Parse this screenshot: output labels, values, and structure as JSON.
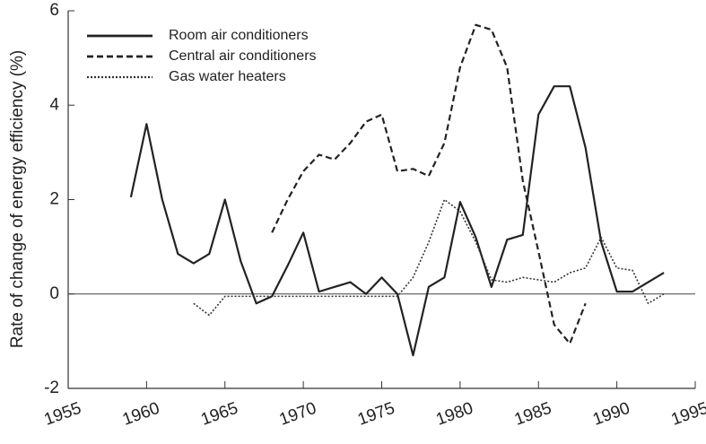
{
  "chart_data": {
    "type": "line",
    "y_label": "Rate of change of energy efficiency (%)",
    "xlim": [
      1955,
      1995
    ],
    "xticks": [
      1955,
      1960,
      1965,
      1970,
      1975,
      1980,
      1985,
      1990,
      1995
    ],
    "ylim": [
      -2,
      6
    ],
    "yticks": [
      -2,
      0,
      2,
      4,
      6
    ],
    "hline": 0,
    "series": [
      {
        "name": "Room air conditioners",
        "color": "#222222",
        "dash": "solid",
        "x": [
          1959,
          1960,
          1961,
          1962,
          1963,
          1964,
          1965,
          1966,
          1967,
          1968,
          1969,
          1970,
          1971,
          1972,
          1973,
          1974,
          1975,
          1976,
          1977,
          1978,
          1979,
          1980,
          1981,
          1982,
          1983,
          1984,
          1985,
          1986,
          1987,
          1988,
          1989,
          1990,
          1991,
          1992,
          1993
        ],
        "values": [
          2.05,
          3.6,
          2.0,
          0.85,
          0.65,
          0.85,
          2.0,
          0.7,
          -0.2,
          -0.05,
          0.6,
          1.3,
          0.05,
          0.15,
          0.25,
          0.0,
          0.35,
          0.0,
          -1.3,
          0.15,
          0.35,
          1.95,
          1.2,
          0.15,
          1.15,
          1.25,
          3.8,
          4.4,
          4.4,
          3.1,
          1.1,
          0.05,
          0.05,
          0.25,
          0.45
        ]
      },
      {
        "name": "Central air conditioners",
        "color": "#222222",
        "dash": "dashed",
        "x": [
          1968,
          1969,
          1970,
          1971,
          1972,
          1973,
          1974,
          1975,
          1976,
          1977,
          1978,
          1979,
          1980,
          1981,
          1982,
          1983,
          1984,
          1985,
          1986,
          1987,
          1988
        ],
        "values": [
          1.3,
          2.0,
          2.6,
          2.95,
          2.85,
          3.2,
          3.65,
          3.8,
          2.6,
          2.65,
          2.5,
          3.2,
          4.8,
          5.7,
          5.6,
          4.8,
          2.4,
          0.9,
          -0.65,
          -1.05,
          -0.2
        ]
      },
      {
        "name": "Gas water heaters",
        "color": "#333333",
        "dash": "dotted",
        "x": [
          1963,
          1964,
          1965,
          1966,
          1967,
          1968,
          1969,
          1970,
          1971,
          1972,
          1973,
          1974,
          1975,
          1976,
          1977,
          1978,
          1979,
          1980,
          1981,
          1982,
          1983,
          1984,
          1985,
          1986,
          1987,
          1988,
          1989,
          1990,
          1991,
          1992,
          1993
        ],
        "values": [
          -0.2,
          -0.45,
          -0.05,
          -0.05,
          -0.05,
          -0.05,
          -0.05,
          -0.05,
          -0.05,
          -0.05,
          -0.05,
          -0.05,
          -0.05,
          -0.05,
          0.35,
          1.1,
          2.0,
          1.75,
          1.1,
          0.3,
          0.25,
          0.35,
          0.3,
          0.25,
          0.45,
          0.55,
          1.2,
          0.55,
          0.5,
          -0.2,
          0.0
        ]
      }
    ]
  }
}
